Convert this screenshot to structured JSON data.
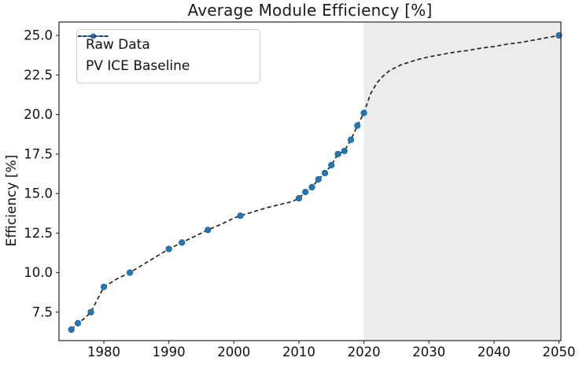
{
  "figure": {
    "title": "Average Module Efficiency [%]"
  },
  "chart_data": {
    "type": "line",
    "title": "Average Module Efficiency [%]",
    "xlabel": "",
    "ylabel": "Efficiency [%]",
    "xlim": [
      1973.1,
      2050.3
    ],
    "ylim": [
      5.7,
      25.85
    ],
    "grid": false,
    "legend_position": "upper left",
    "x_tick_labels": [
      "1980",
      "1990",
      "2000",
      "2010",
      "2020",
      "2030",
      "2040",
      "2050"
    ],
    "y_tick_labels": [
      "7.5",
      "10.0",
      "12.5",
      "15.0",
      "17.5",
      "20.0",
      "22.5",
      "25.0"
    ],
    "shaded_region": {
      "x_start": 2020,
      "x_end": 2050.3,
      "color": "#ececec",
      "meaning": "projection period after 2020"
    },
    "series": [
      {
        "name": "Raw Data",
        "type": "scatter",
        "marker": "circle",
        "color": "#2277b4",
        "points": [
          [
            1975,
            6.4
          ],
          [
            1976,
            6.8
          ],
          [
            1978,
            7.5
          ],
          [
            1980,
            9.1
          ],
          [
            1984,
            10.0
          ],
          [
            1990,
            11.5
          ],
          [
            1992,
            11.9
          ],
          [
            1996,
            12.7
          ],
          [
            2001,
            13.6
          ],
          [
            2010,
            14.7
          ],
          [
            2011,
            15.1
          ],
          [
            2012,
            15.4
          ],
          [
            2013,
            15.9
          ],
          [
            2014,
            16.3
          ],
          [
            2015,
            16.8
          ],
          [
            2016,
            17.5
          ],
          [
            2017,
            17.7
          ],
          [
            2018,
            18.4
          ],
          [
            2019,
            19.3
          ],
          [
            2020,
            20.1
          ],
          [
            2050,
            25.0
          ]
        ]
      },
      {
        "name": "PV ICE Baseline",
        "type": "line",
        "linestyle": "dashed",
        "color": "#1a1a1a",
        "points": [
          [
            1975,
            6.4
          ],
          [
            1976,
            6.8
          ],
          [
            1977,
            7.1
          ],
          [
            1978,
            7.5
          ],
          [
            1979,
            8.3
          ],
          [
            1980,
            9.1
          ],
          [
            1981,
            9.35
          ],
          [
            1982,
            9.6
          ],
          [
            1983,
            9.8
          ],
          [
            1984,
            10.0
          ],
          [
            1986,
            10.5
          ],
          [
            1988,
            11.0
          ],
          [
            1990,
            11.5
          ],
          [
            1992,
            11.9
          ],
          [
            1994,
            12.3
          ],
          [
            1996,
            12.7
          ],
          [
            1998,
            13.05
          ],
          [
            2000,
            13.45
          ],
          [
            2001,
            13.6
          ],
          [
            2003,
            13.85
          ],
          [
            2005,
            14.1
          ],
          [
            2007,
            14.3
          ],
          [
            2009,
            14.5
          ],
          [
            2010,
            14.7
          ],
          [
            2011,
            15.1
          ],
          [
            2012,
            15.4
          ],
          [
            2013,
            15.9
          ],
          [
            2014,
            16.3
          ],
          [
            2015,
            16.8
          ],
          [
            2016,
            17.5
          ],
          [
            2017,
            17.7
          ],
          [
            2018,
            18.4
          ],
          [
            2019,
            19.3
          ],
          [
            2020,
            20.1
          ],
          [
            2021,
            21.3
          ],
          [
            2022,
            22.0
          ],
          [
            2023,
            22.45
          ],
          [
            2024,
            22.8
          ],
          [
            2025,
            23.0
          ],
          [
            2026,
            23.2
          ],
          [
            2027,
            23.3
          ],
          [
            2028,
            23.45
          ],
          [
            2029,
            23.55
          ],
          [
            2030,
            23.65
          ],
          [
            2032,
            23.8
          ],
          [
            2034,
            23.95
          ],
          [
            2036,
            24.05
          ],
          [
            2038,
            24.2
          ],
          [
            2040,
            24.3
          ],
          [
            2042,
            24.45
          ],
          [
            2044,
            24.55
          ],
          [
            2046,
            24.7
          ],
          [
            2048,
            24.85
          ],
          [
            2050,
            25.0
          ]
        ]
      }
    ]
  },
  "legend": {
    "items": [
      {
        "label": "Raw Data",
        "sample": "blue-solid-line-with-circle-marker"
      },
      {
        "label": "PV ICE Baseline",
        "sample": "black-dashed-line"
      }
    ]
  },
  "colors": {
    "raw_data": "#2277b4",
    "legend_line_blue": "#3b82c4",
    "baseline": "#1a1a1a",
    "shade": "#ececec",
    "axis": "#262626",
    "tick_text": "#111111"
  }
}
